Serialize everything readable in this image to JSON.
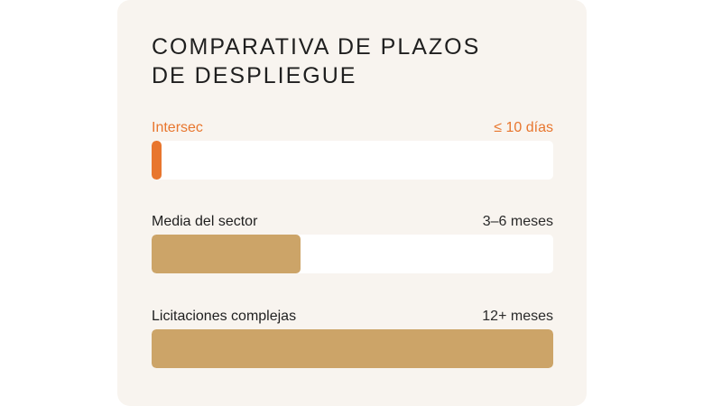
{
  "title": {
    "line1": "COMPARATIVA DE PLAZOS",
    "line2": "DE DESPLIEGUE"
  },
  "chart_data": {
    "type": "bar",
    "orientation": "horizontal",
    "title": "COMPARATIVA DE PLAZOS DE DESPLIEGUE",
    "categories": [
      "Intersec",
      "Media del sector",
      "Licitaciones complejas"
    ],
    "value_labels": [
      "≤ 10 días",
      "3–6 meses",
      "12+ meses"
    ],
    "values": [
      0.025,
      0.37,
      1.0
    ],
    "xlim": [
      0,
      1
    ],
    "grid": false,
    "colors": [
      "#e8762e",
      "#cca468",
      "#cca468"
    ],
    "track_color": "#ffffff"
  }
}
